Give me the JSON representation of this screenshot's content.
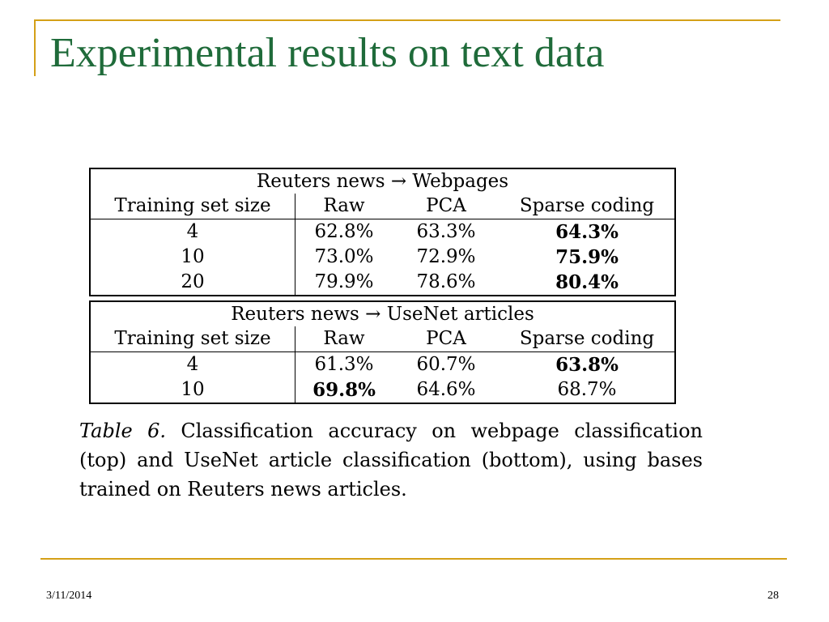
{
  "slide": {
    "title": "Experimental results on text data",
    "date": "3/11/2014",
    "page_number": "28",
    "accent_color": "#d4a017",
    "title_color": "#1f6b3a"
  },
  "tables": [
    {
      "title": "Reuters news → Webpages",
      "headers": [
        "Training set size",
        "Raw",
        "PCA",
        "Sparse coding"
      ],
      "rows": [
        {
          "size": "4",
          "raw": "62.8%",
          "pca": "63.3%",
          "sparse": "64.3%",
          "best": "sparse"
        },
        {
          "size": "10",
          "raw": "73.0%",
          "pca": "72.9%",
          "sparse": "75.9%",
          "best": "sparse"
        },
        {
          "size": "20",
          "raw": "79.9%",
          "pca": "78.6%",
          "sparse": "80.4%",
          "best": "sparse"
        }
      ]
    },
    {
      "title": "Reuters news → UseNet articles",
      "headers": [
        "Training set size",
        "Raw",
        "PCA",
        "Sparse coding"
      ],
      "rows": [
        {
          "size": "4",
          "raw": "61.3%",
          "pca": "60.7%",
          "sparse": "63.8%",
          "best": "sparse"
        },
        {
          "size": "10",
          "raw": "69.8%",
          "pca": "64.6%",
          "sparse": "68.7%",
          "best": "raw"
        }
      ]
    }
  ],
  "caption": {
    "label": "Table 6.",
    "text": "Classification accuracy on webpage classification (top) and UseNet article classification (bottom), using bases trained on Reuters news articles."
  }
}
